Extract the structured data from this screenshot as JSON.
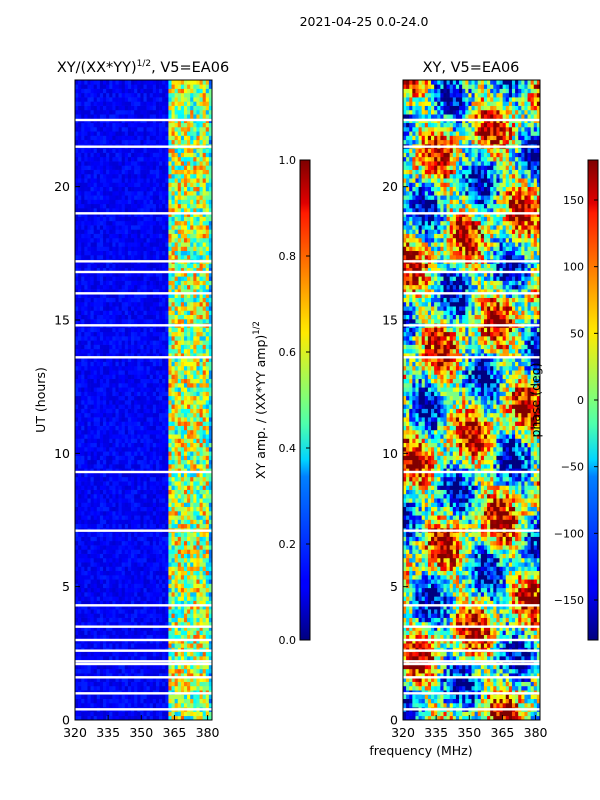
{
  "figure": {
    "suptitle": "2021-04-25 0.0-24.0",
    "shared_xlabel": "frequency (MHz)"
  },
  "chart_data": [
    {
      "type": "heatmap",
      "title_main": "XY/(XX*YY)",
      "title_sup": "1/2",
      "title_tail": ", V5=EA06",
      "xlabel": "",
      "ylabel": "UT (hours)",
      "xlim": [
        320,
        382
      ],
      "ylim": [
        0,
        24
      ],
      "xticks": [
        320,
        335,
        350,
        365,
        380
      ],
      "yticks": [
        0,
        5,
        10,
        15,
        20
      ],
      "colormap": "jet",
      "vmin": 0.0,
      "vmax": 1.0,
      "colorbar_label_main": "XY amp. / (XX*YY amp)",
      "colorbar_label_sup": "1/2",
      "colorbar_ticks": [
        0.0,
        0.2,
        0.4,
        0.6,
        0.8,
        1.0
      ],
      "colorbar_ticklabels": [
        "0.0",
        "0.2",
        "0.4",
        "0.6",
        "0.8",
        "1.0"
      ],
      "active_band_mhz": [
        362,
        380
      ],
      "blank_ut_hours": [
        0.4,
        1.0,
        1.6,
        2.1,
        2.2,
        2.6,
        3.0,
        3.5,
        4.3,
        7.1,
        9.3,
        13.6,
        14.8,
        16.0,
        16.8,
        17.2,
        19.0,
        21.5,
        22.5
      ]
    },
    {
      "type": "heatmap",
      "title_main": "XY, V5=EA06",
      "xlabel": "",
      "ylabel": "",
      "xlim": [
        320,
        382
      ],
      "ylim": [
        0,
        24
      ],
      "xticks": [
        320,
        335,
        350,
        365,
        380
      ],
      "yticks": [
        0,
        5,
        10,
        15,
        20
      ],
      "colormap": "jet",
      "vmin": -180,
      "vmax": 180,
      "colorbar_label_main": "phase (deg)",
      "colorbar_ticks": [
        -150,
        -100,
        -50,
        0,
        50,
        100,
        150
      ],
      "colorbar_ticklabels": [
        "−150",
        "−100",
        "−50",
        "0",
        "50",
        "100",
        "150"
      ],
      "blank_ut_hours": [
        0.4,
        1.0,
        1.6,
        2.1,
        2.2,
        2.6,
        3.0,
        3.5,
        4.3,
        7.1,
        9.3,
        13.6,
        14.8,
        16.0,
        16.8,
        17.2,
        19.0,
        21.5,
        22.5
      ]
    }
  ]
}
